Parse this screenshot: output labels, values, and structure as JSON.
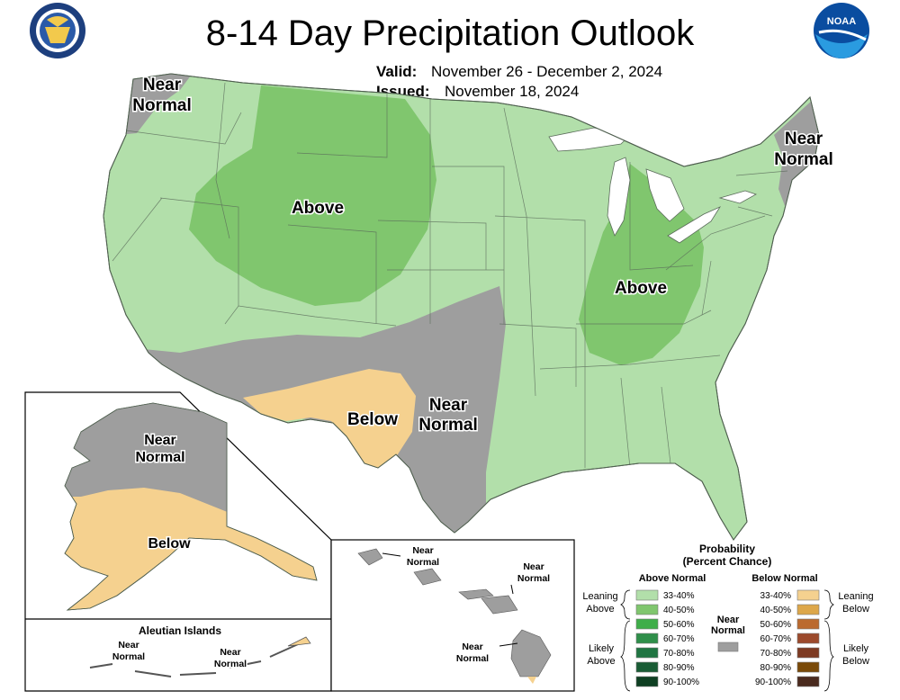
{
  "header": {
    "title": "8-14 Day Precipitation Outlook",
    "valid_label": "Valid:",
    "valid_value": "November 26 - December 2, 2024",
    "issued_label": "Issued:",
    "issued_value": "November 18, 2024",
    "left_logo": "department-of-commerce-seal",
    "right_logo": "noaa-logo",
    "seal_text": "DEPARTMENT OF COMMERCE · UNITED STATES OF AMERICA",
    "noaa_text": "NOAA"
  },
  "map": {
    "colors": {
      "background": "#ffffff",
      "lake": "#ffffff",
      "near_normal": "#9e9e9e",
      "above_33_40": "#b2dfaa",
      "above_40_50": "#80c66e",
      "below_33_40": "#f5d18f"
    },
    "labels": {
      "nw_near_normal_1": "Near",
      "nw_near_normal_2": "Normal",
      "ne_near_normal_1": "Near",
      "ne_near_normal_2": "Normal",
      "west_above": "Above",
      "east_above": "Above",
      "sw_below": "Below",
      "tx_near_normal_1": "Near",
      "tx_near_normal_2": "Normal"
    }
  },
  "alaska": {
    "labels": {
      "near_normal_1": "Near",
      "near_normal_2": "Normal",
      "below": "Below"
    },
    "aleutian": {
      "title": "Aleutian Islands",
      "near_normal_1": "Near",
      "near_normal_2": "Normal"
    }
  },
  "hawaii": {
    "labels": {
      "kauai_1": "Near",
      "kauai_2": "Normal",
      "maui_1": "Near",
      "maui_2": "Normal",
      "big_island_1": "Near",
      "big_island_2": "Normal"
    }
  },
  "legend": {
    "title_1": "Probability",
    "title_2": "(Percent Chance)",
    "above_header": "Above Normal",
    "below_header": "Below Normal",
    "near_normal_1": "Near",
    "near_normal_2": "Normal",
    "leaning_above_1": "Leaning",
    "leaning_above_2": "Above",
    "likely_above_1": "Likely",
    "likely_above_2": "Above",
    "leaning_below_1": "Leaning",
    "leaning_below_2": "Below",
    "likely_below_1": "Likely",
    "likely_below_2": "Below",
    "near_normal_color": "#9e9e9e",
    "above": [
      {
        "label": "33-40%",
        "color": "#b2dfaa"
      },
      {
        "label": "40-50%",
        "color": "#80c66e"
      },
      {
        "label": "50-60%",
        "color": "#3fae49"
      },
      {
        "label": "60-70%",
        "color": "#2f8f4a"
      },
      {
        "label": "70-80%",
        "color": "#207542"
      },
      {
        "label": "80-90%",
        "color": "#195c35"
      },
      {
        "label": "90-100%",
        "color": "#0e3f22"
      }
    ],
    "below": [
      {
        "label": "33-40%",
        "color": "#f5d18f"
      },
      {
        "label": "40-50%",
        "color": "#dda74a"
      },
      {
        "label": "50-60%",
        "color": "#bb6a2f"
      },
      {
        "label": "60-70%",
        "color": "#9c4a2c"
      },
      {
        "label": "70-80%",
        "color": "#7d3a22"
      },
      {
        "label": "80-90%",
        "color": "#7a4a08"
      },
      {
        "label": "90-100%",
        "color": "#4a2a1e"
      }
    ]
  }
}
